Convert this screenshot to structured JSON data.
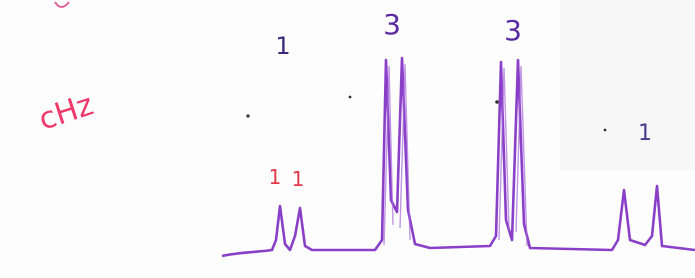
{
  "annotations": {
    "integrals": [
      "1",
      "3",
      "3",
      "1"
    ],
    "splitting": [
      "1",
      "1"
    ],
    "note": "cHz"
  }
}
